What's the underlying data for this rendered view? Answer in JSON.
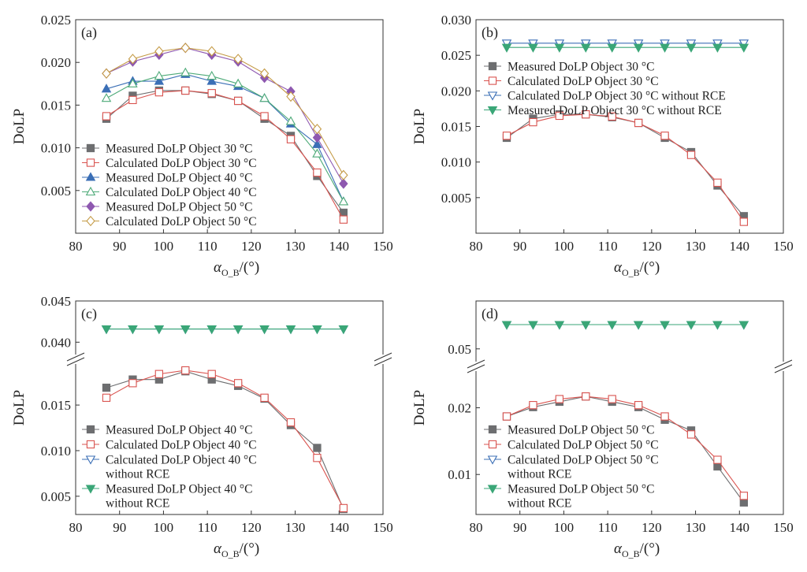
{
  "chart_data": [
    {
      "id": "a",
      "type": "line",
      "panel_label": "(a)",
      "ylabel": "DoLP",
      "xlabel": "α",
      "xlabel_sub": "O_B",
      "xlabel_unit": "/(°)",
      "xlim": [
        80,
        150
      ],
      "xticks": [
        80,
        90,
        100,
        110,
        120,
        130,
        140,
        150
      ],
      "ylim": [
        0.0,
        0.025
      ],
      "yticks": [
        "0.005",
        "0.010",
        "0.015",
        "0.020",
        "0.025"
      ],
      "legend_position": "bottom-left",
      "x": [
        87,
        93,
        99,
        105,
        111,
        117,
        123,
        129,
        135,
        141
      ],
      "series": [
        {
          "name": "Measured DoLP Object 30 °C",
          "color": "#6d6e70",
          "marker": "square-filled",
          "values": [
            0.0134,
            0.0161,
            0.0167,
            0.0167,
            0.0163,
            0.0155,
            0.0134,
            0.0114,
            0.0067,
            0.0024
          ]
        },
        {
          "name": "Calculated DoLP Object 30 °C",
          "color": "#d9534f",
          "marker": "square-open",
          "values": [
            0.0137,
            0.0156,
            0.0165,
            0.0167,
            0.0164,
            0.0155,
            0.0137,
            0.011,
            0.0071,
            0.0016
          ]
        },
        {
          "name": "Measured DoLP Object 40 °C",
          "color": "#3b6fb6",
          "marker": "triangle-up-filled",
          "values": [
            0.0169,
            0.0178,
            0.0178,
            0.0186,
            0.0178,
            0.0172,
            0.0158,
            0.0128,
            0.0104,
            0.0037
          ]
        },
        {
          "name": "Calculated DoLP Object 40 °C",
          "color": "#4daa78",
          "marker": "triangle-up-open",
          "values": [
            0.0158,
            0.0175,
            0.0184,
            0.0188,
            0.0184,
            0.0175,
            0.0158,
            0.0131,
            0.0093,
            0.0037
          ]
        },
        {
          "name": "Measured DoLP Object 50 °C",
          "color": "#8e58b0",
          "marker": "diamond-filled",
          "values": [
            0.0187,
            0.0201,
            0.0209,
            0.0217,
            0.0209,
            0.0201,
            0.0182,
            0.0166,
            0.0112,
            0.0058
          ]
        },
        {
          "name": "Calculated DoLP Object 50 °C",
          "color": "#c49a45",
          "marker": "diamond-open",
          "values": [
            0.0187,
            0.0204,
            0.0213,
            0.0217,
            0.0213,
            0.0204,
            0.0187,
            0.016,
            0.0122,
            0.0068
          ]
        }
      ]
    },
    {
      "id": "b",
      "type": "line",
      "panel_label": "(b)",
      "ylabel": "DoLP",
      "xlabel": "α",
      "xlabel_sub": "O_B",
      "xlabel_unit": "/(°)",
      "xlim": [
        80,
        150
      ],
      "xticks": [
        80,
        90,
        100,
        110,
        120,
        130,
        140,
        150
      ],
      "ylim": [
        0.0,
        0.03
      ],
      "yticks": [
        "0.005",
        "0.010",
        "0.015",
        "0.020",
        "0.025",
        "0.030"
      ],
      "legend_position": "top-left",
      "x": [
        87,
        93,
        99,
        105,
        111,
        117,
        123,
        129,
        135,
        141
      ],
      "series": [
        {
          "name": "Measured DoLP Object 30 °C",
          "color": "#6d6e70",
          "marker": "square-filled",
          "values": [
            0.0134,
            0.0161,
            0.0167,
            0.0167,
            0.0163,
            0.0155,
            0.0134,
            0.0114,
            0.0067,
            0.0024
          ]
        },
        {
          "name": "Calculated DoLP Object 30 °C",
          "color": "#d9534f",
          "marker": "square-open",
          "values": [
            0.0137,
            0.0156,
            0.0165,
            0.0167,
            0.0164,
            0.0155,
            0.0137,
            0.011,
            0.0071,
            0.0016
          ]
        },
        {
          "name": "Calculated DoLP Object 30 °C without RCE",
          "color": "#3b6fb6",
          "marker": "triangle-down-open",
          "values": [
            0.0267,
            0.0267,
            0.0267,
            0.0267,
            0.0267,
            0.0267,
            0.0267,
            0.0267,
            0.0267,
            0.0267
          ]
        },
        {
          "name": "Measured DoLP Object 30 °C without RCE",
          "color": "#3aa677",
          "marker": "triangle-down-filled",
          "values": [
            0.0261,
            0.0261,
            0.0261,
            0.0261,
            0.0261,
            0.0261,
            0.0261,
            0.0261,
            0.0261,
            0.0261
          ]
        }
      ]
    },
    {
      "id": "c",
      "type": "line",
      "panel_label": "(c)",
      "ylabel": "DoLP",
      "xlabel": "α",
      "xlabel_sub": "O_B",
      "xlabel_unit": "/(°)",
      "xlim": [
        80,
        150
      ],
      "xticks": [
        80,
        90,
        100,
        110,
        120,
        130,
        140,
        150
      ],
      "axis_break": true,
      "ylim_lower": [
        0.003,
        0.0195
      ],
      "ylim_upper": [
        0.0385,
        0.045
      ],
      "yticks_lower": [
        "0.005",
        "0.010",
        "0.015"
      ],
      "yticks_upper": [
        "0.040",
        "0.045"
      ],
      "legend_position": "bottom-left",
      "x": [
        87,
        93,
        99,
        105,
        111,
        117,
        123,
        129,
        135,
        141
      ],
      "series": [
        {
          "name": "Measured DoLP Object 40 °C",
          "color": "#6d6e70",
          "marker": "square-filled",
          "values": [
            0.0169,
            0.0178,
            0.0178,
            0.0187,
            0.0178,
            0.0171,
            0.0157,
            0.0128,
            0.0103,
            0.0036
          ]
        },
        {
          "name": "Calculated DoLP Object 40 °C",
          "color": "#d9534f",
          "marker": "square-open",
          "values": [
            0.0158,
            0.0174,
            0.0184,
            0.0188,
            0.0184,
            0.0174,
            0.0158,
            0.0131,
            0.0092,
            0.0037
          ]
        },
        {
          "name": "Calculated DoLP Object 40 °C",
          "name_line2": "without RCE",
          "color": "#3b6fb6",
          "marker": "triangle-down-open",
          "values": [
            0.0416,
            0.0416,
            0.0416,
            0.0416,
            0.0416,
            0.0416,
            0.0416,
            0.0416,
            0.0416,
            0.0416
          ]
        },
        {
          "name": "Measured DoLP Object 40 °C",
          "name_line2": "without RCE",
          "color": "#3aa677",
          "marker": "triangle-down-filled",
          "values": [
            0.0416,
            0.0416,
            0.0416,
            0.0416,
            0.0416,
            0.0416,
            0.0416,
            0.0416,
            0.0416,
            0.0416
          ]
        }
      ]
    },
    {
      "id": "d",
      "type": "line",
      "panel_label": "(d)",
      "ylabel": "DoLP",
      "xlabel": "α",
      "xlabel_sub": "O_B",
      "xlabel_unit": "/(°)",
      "xlim": [
        80,
        150
      ],
      "xticks": [
        80,
        90,
        100,
        110,
        120,
        130,
        140,
        150
      ],
      "axis_break": true,
      "ylim_lower": [
        0.004,
        0.0255
      ],
      "ylim_upper": [
        0.048,
        0.0575
      ],
      "yticks_lower": [
        "0.01",
        "0.02"
      ],
      "yticks_upper": [
        "0.05"
      ],
      "legend_position": "bottom-left",
      "x": [
        87,
        93,
        99,
        105,
        111,
        117,
        123,
        129,
        135,
        141
      ],
      "series": [
        {
          "name": "Measured DoLP Object 50 °C",
          "color": "#6d6e70",
          "marker": "square-filled",
          "values": [
            0.0187,
            0.0201,
            0.0209,
            0.0217,
            0.0209,
            0.0201,
            0.0182,
            0.0166,
            0.0112,
            0.0058
          ]
        },
        {
          "name": "Calculated DoLP Object 50 °C",
          "color": "#d9534f",
          "marker": "square-open",
          "values": [
            0.0187,
            0.0204,
            0.0213,
            0.0217,
            0.0213,
            0.0204,
            0.0187,
            0.016,
            0.0122,
            0.0068
          ]
        },
        {
          "name": "Calculated DoLP Object 50 °C",
          "name_line2": "without RCE",
          "color": "#3b6fb6",
          "marker": "triangle-down-open",
          "values": [
            0.0538,
            0.0538,
            0.0538,
            0.0538,
            0.0538,
            0.0538,
            0.0538,
            0.0538,
            0.0538,
            0.0538
          ]
        },
        {
          "name": "Measured DoLP Object 50 °C",
          "name_line2": "without RCE",
          "color": "#3aa677",
          "marker": "triangle-down-filled",
          "values": [
            0.0538,
            0.0538,
            0.0538,
            0.0538,
            0.0538,
            0.0538,
            0.0538,
            0.0538,
            0.0538,
            0.0538
          ]
        }
      ]
    }
  ]
}
